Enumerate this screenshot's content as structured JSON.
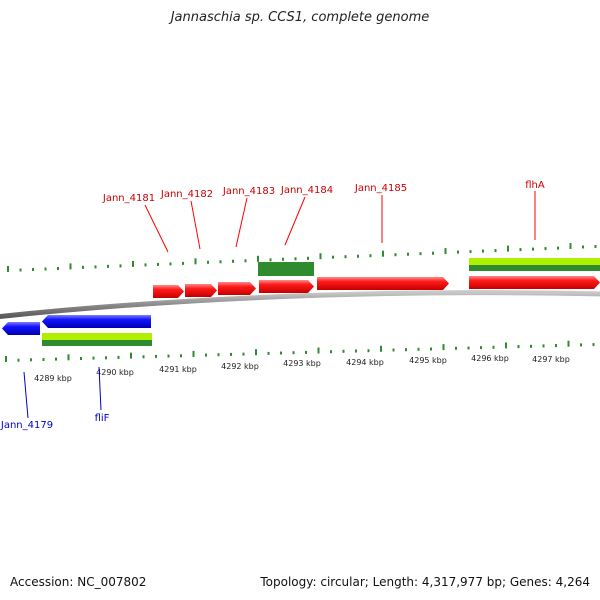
{
  "title": "Jannaschia sp. CCS1, complete genome",
  "footer": {
    "accession": "Accession: NC_007802",
    "summary": "Topology: circular; Length: 4,317,977 bp; Genes: 4,264"
  },
  "colors": {
    "forward_gene": "#ff0000",
    "reverse_gene": "#0000ff",
    "light_feature": "#aef000",
    "dark_feature": "#2e8b2e",
    "tick": "#2e8b2e",
    "backbone": "#808080"
  },
  "kbp_labels": [
    "4289 kbp",
    "4290 kbp",
    "4291 kbp",
    "4292 kbp",
    "4293 kbp",
    "4294 kbp",
    "4295 kbp",
    "4296 kbp",
    "4297 kbp"
  ],
  "forward_labels": [
    "Jann_4181",
    "Jann_4182",
    "Jann_4183",
    "Jann_4184",
    "Jann_4185",
    "flhA"
  ],
  "reverse_labels": [
    "Jann_4179",
    "fliF"
  ]
}
